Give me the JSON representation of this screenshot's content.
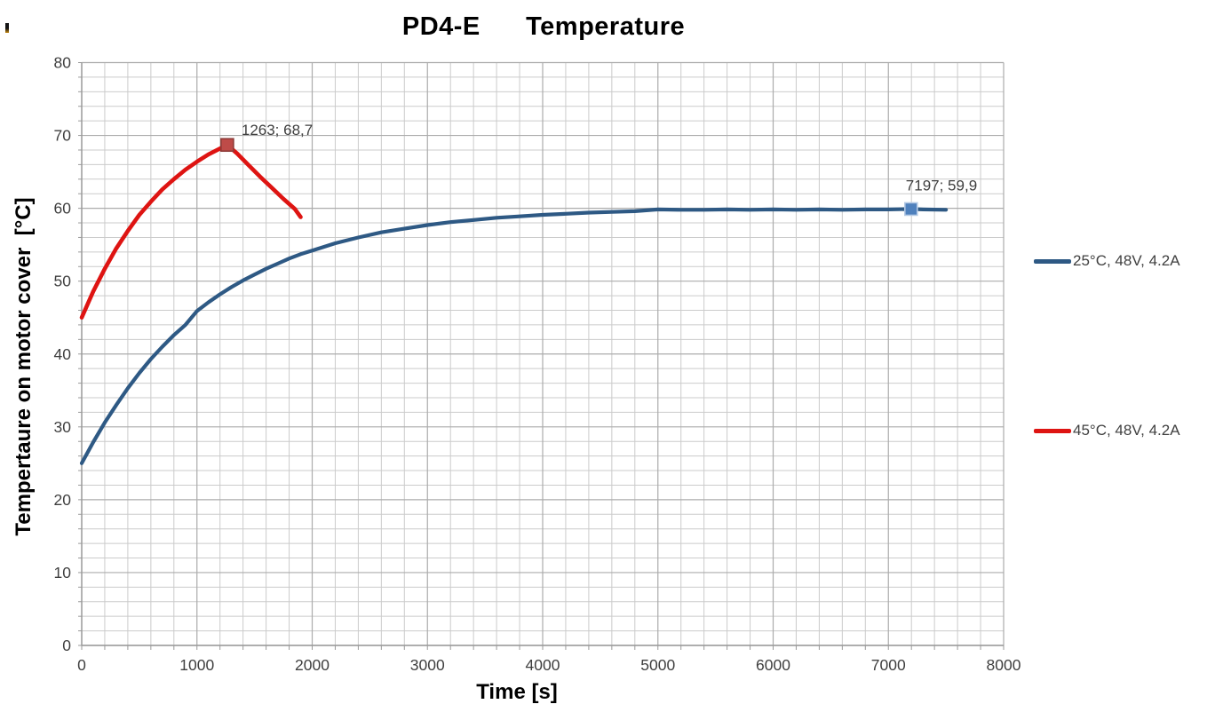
{
  "title": {
    "text": "PD4-E      Temperature"
  },
  "x_axis": {
    "label": "Time [s]"
  },
  "y_axis": {
    "label": "Tempertaure on motor cover  [°C]"
  },
  "legend": {
    "items": [
      {
        "label": "25°C, 48V, 4.2A",
        "color": "#2E5984"
      },
      {
        "label": "45°C, 48V, 4.2A",
        "color": "#DE1412"
      }
    ]
  },
  "colors": {
    "background": "#FFFFFF",
    "grid_minor": "#CBCBCB",
    "grid_major": "#ACACAC",
    "axis_line": "#9A9A9A",
    "tick_label": "#3F3F3F",
    "annotation_text": "#404040"
  },
  "chart_data": {
    "type": "line",
    "title": "PD4-E Temperature",
    "xlabel": "Time [s]",
    "ylabel": "Tempertaure on motor cover [°C]",
    "xlim": [
      0,
      8000
    ],
    "ylim": [
      0,
      80
    ],
    "x_major_tick": 1000,
    "x_minor_tick": 200,
    "y_major_tick": 10,
    "y_minor_tick": 2,
    "grid": true,
    "legend_position": "right",
    "series": [
      {
        "name": "25°C, 48V, 4.2A",
        "color": "#2E5984",
        "line_width": 4.2,
        "points": [
          [
            0,
            25.0
          ],
          [
            100,
            27.9
          ],
          [
            200,
            30.6
          ],
          [
            300,
            33.0
          ],
          [
            400,
            35.3
          ],
          [
            500,
            37.4
          ],
          [
            600,
            39.3
          ],
          [
            700,
            41.0
          ],
          [
            800,
            42.6
          ],
          [
            900,
            44.0
          ],
          [
            1000,
            45.9
          ],
          [
            1100,
            47.1
          ],
          [
            1200,
            48.2
          ],
          [
            1300,
            49.2
          ],
          [
            1400,
            50.1
          ],
          [
            1500,
            50.9
          ],
          [
            1600,
            51.7
          ],
          [
            1700,
            52.4
          ],
          [
            1800,
            53.1
          ],
          [
            1900,
            53.7
          ],
          [
            2000,
            54.2
          ],
          [
            2200,
            55.2
          ],
          [
            2400,
            56.0
          ],
          [
            2600,
            56.7
          ],
          [
            2800,
            57.2
          ],
          [
            3000,
            57.7
          ],
          [
            3200,
            58.1
          ],
          [
            3400,
            58.4
          ],
          [
            3600,
            58.7
          ],
          [
            3800,
            58.9
          ],
          [
            4000,
            59.1
          ],
          [
            4200,
            59.25
          ],
          [
            4400,
            59.4
          ],
          [
            4600,
            59.5
          ],
          [
            4800,
            59.6
          ],
          [
            5000,
            59.85
          ],
          [
            5200,
            59.8
          ],
          [
            5400,
            59.8
          ],
          [
            5600,
            59.85
          ],
          [
            5800,
            59.8
          ],
          [
            6000,
            59.85
          ],
          [
            6200,
            59.8
          ],
          [
            6400,
            59.85
          ],
          [
            6600,
            59.8
          ],
          [
            6800,
            59.85
          ],
          [
            7000,
            59.85
          ],
          [
            7197,
            59.9
          ],
          [
            7300,
            59.85
          ],
          [
            7500,
            59.8
          ]
        ],
        "marker": {
          "x": 7197,
          "y": 59.9,
          "fill": "#4F81BD",
          "stroke": "#B3C9E4",
          "size": 14,
          "label": "7197; 59,9",
          "label_dx": -6,
          "label_dy": -21
        }
      },
      {
        "name": "45°C, 48V, 4.2A",
        "color": "#DE1412",
        "line_width": 4.6,
        "points": [
          [
            0,
            45.0
          ],
          [
            100,
            48.6
          ],
          [
            200,
            51.7
          ],
          [
            300,
            54.5
          ],
          [
            400,
            56.9
          ],
          [
            500,
            59.1
          ],
          [
            600,
            60.9
          ],
          [
            700,
            62.6
          ],
          [
            800,
            64.0
          ],
          [
            900,
            65.3
          ],
          [
            1000,
            66.4
          ],
          [
            1100,
            67.4
          ],
          [
            1200,
            68.2
          ],
          [
            1263,
            68.7
          ],
          [
            1350,
            67.5
          ],
          [
            1450,
            65.9
          ],
          [
            1550,
            64.3
          ],
          [
            1650,
            62.8
          ],
          [
            1750,
            61.3
          ],
          [
            1850,
            59.9
          ],
          [
            1900,
            58.8
          ]
        ],
        "marker": {
          "x": 1263,
          "y": 68.7,
          "fill": "#BE4B48",
          "stroke": "#8E3B38",
          "size": 14,
          "label": "1263; 68,7",
          "label_dx": 16,
          "label_dy": -11
        }
      }
    ]
  }
}
